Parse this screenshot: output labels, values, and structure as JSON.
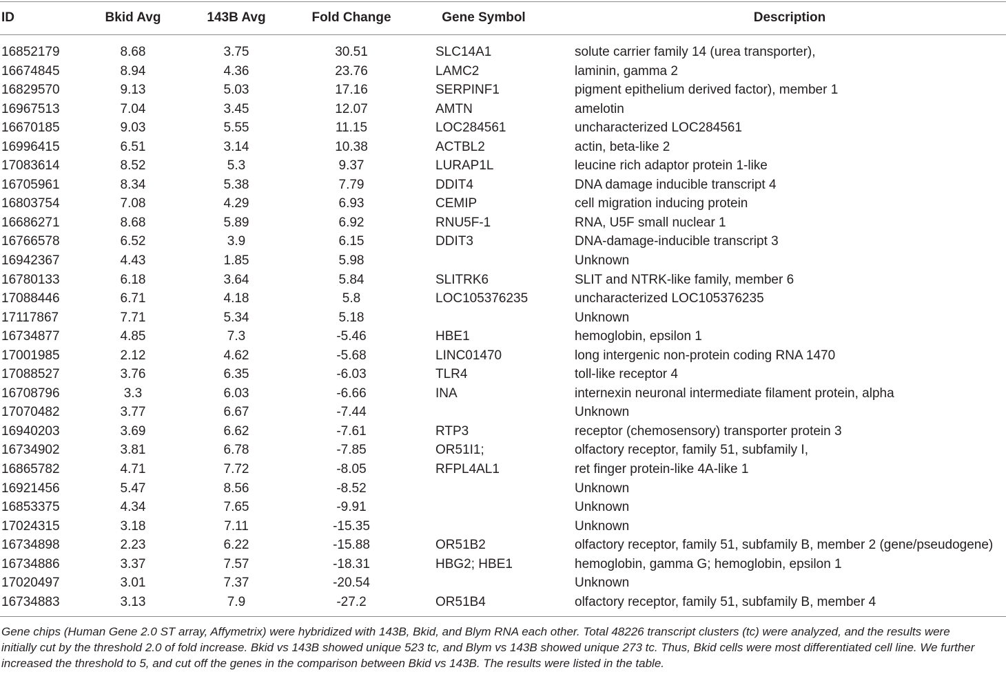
{
  "table": {
    "headers": {
      "id": "ID",
      "bkid": "Bkid Avg",
      "b143": "143B Avg",
      "fold": "Fold Change",
      "gene": "Gene Symbol",
      "desc": "Description"
    },
    "rows": [
      [
        "16852179",
        "8.68",
        "3.75",
        "30.51",
        "SLC14A1",
        "solute carrier family 14 (urea transporter),"
      ],
      [
        "16674845",
        "8.94",
        "4.36",
        "23.76",
        "LAMC2",
        "laminin, gamma 2"
      ],
      [
        "16829570",
        "9.13",
        "5.03",
        "17.16",
        "SERPINF1",
        "pigment epithelium derived factor), member 1"
      ],
      [
        "16967513",
        "7.04",
        "3.45",
        "12.07",
        "AMTN",
        "amelotin"
      ],
      [
        "16670185",
        "9.03",
        "5.55",
        "11.15",
        "LOC284561",
        "uncharacterized LOC284561"
      ],
      [
        "16996415",
        "6.51",
        "3.14",
        "10.38",
        "ACTBL2",
        "actin, beta-like 2"
      ],
      [
        "17083614",
        "8.52",
        "5.3",
        "9.37",
        "LURAP1L",
        "leucine rich adaptor protein 1-like"
      ],
      [
        "16705961",
        "8.34",
        "5.38",
        "7.79",
        "DDIT4",
        "DNA damage inducible transcript 4"
      ],
      [
        "16803754",
        "7.08",
        "4.29",
        "6.93",
        "CEMIP",
        "cell migration inducing protein"
      ],
      [
        "16686271",
        "8.68",
        "5.89",
        "6.92",
        "RNU5F-1",
        "RNA, U5F small nuclear 1"
      ],
      [
        "16766578",
        "6.52",
        "3.9",
        "6.15",
        "DDIT3",
        "DNA-damage-inducible transcript 3"
      ],
      [
        "16942367",
        "4.43",
        "1.85",
        "5.98",
        "",
        "Unknown"
      ],
      [
        "16780133",
        "6.18",
        "3.64",
        "5.84",
        "SLITRK6",
        "SLIT and NTRK-like family, member 6"
      ],
      [
        "17088446",
        "6.71",
        "4.18",
        "5.8",
        "LOC105376235",
        "uncharacterized LOC105376235"
      ],
      [
        "17117867",
        "7.71",
        "5.34",
        "5.18",
        "",
        "Unknown"
      ],
      [
        "16734877",
        "4.85",
        "7.3",
        "-5.46",
        "HBE1",
        "hemoglobin, epsilon 1"
      ],
      [
        "17001985",
        "2.12",
        "4.62",
        "-5.68",
        "LINC01470",
        "long intergenic non-protein coding RNA 1470"
      ],
      [
        "17088527",
        "3.76",
        "6.35",
        "-6.03",
        "TLR4",
        "toll-like receptor 4"
      ],
      [
        "16708796",
        "3.3",
        "6.03",
        "-6.66",
        "INA",
        "internexin neuronal intermediate filament protein, alpha"
      ],
      [
        "17070482",
        "3.77",
        "6.67",
        "-7.44",
        "",
        "Unknown"
      ],
      [
        "16940203",
        "3.69",
        "6.62",
        "-7.61",
        "RTP3",
        "receptor (chemosensory) transporter protein 3"
      ],
      [
        "16734902",
        "3.81",
        "6.78",
        "-7.85",
        "OR51I1;",
        "olfactory receptor, family 51, subfamily I,"
      ],
      [
        "16865782",
        "4.71",
        "7.72",
        "-8.05",
        "RFPL4AL1",
        "ret finger protein-like 4A-like 1"
      ],
      [
        "16921456",
        "5.47",
        "8.56",
        "-8.52",
        "",
        "Unknown"
      ],
      [
        "16853375",
        "4.34",
        "7.65",
        "-9.91",
        "",
        "Unknown"
      ],
      [
        "17024315",
        "3.18",
        "7.11",
        "-15.35",
        "",
        "Unknown"
      ],
      [
        "16734898",
        "2.23",
        "6.22",
        "-15.88",
        "OR51B2",
        "olfactory receptor, family 51, subfamily B, member 2 (gene/pseudogene)"
      ],
      [
        "16734886",
        "3.37",
        "7.57",
        "-18.31",
        "HBG2; HBE1",
        "hemoglobin, gamma G; hemoglobin, epsilon 1"
      ],
      [
        "17020497",
        "3.01",
        "7.37",
        "-20.54",
        "",
        "Unknown"
      ],
      [
        "16734883",
        "3.13",
        "7.9",
        "-27.2",
        "OR51B4",
        "olfactory receptor, family 51, subfamily B, member 4"
      ]
    ]
  },
  "footnote": {
    "lines": [
      "Gene chips (Human Gene 2.0 ST array, Affymetrix) were hybridized with 143B, Bkid, and Blym RNA each other. Total 48226 transcript clusters (tc) were analyzed, and the results were",
      "initially cut by the threshold 2.0 of fold increase. Bkid vs 143B showed unique 523 tc, and Blym vs 143B showed unique 273 tc. Thus, Bkid cells were most differentiated cell line. We further",
      "increased the threshold to 5, and cut off the genes in the comparison between Bkid vs 143B. The results were listed in the table."
    ]
  }
}
